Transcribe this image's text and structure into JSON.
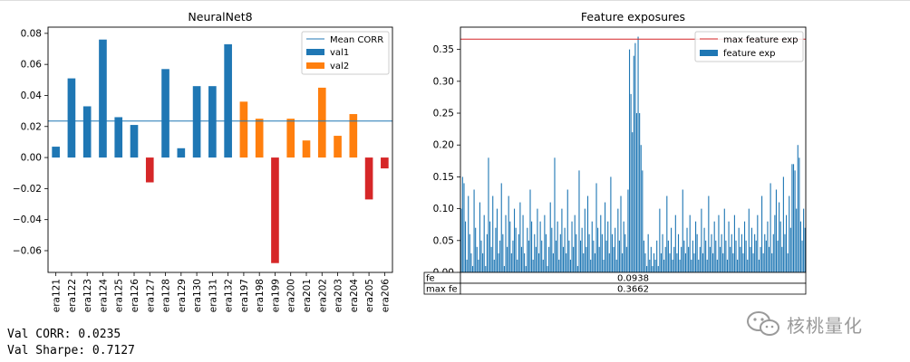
{
  "chart_data": [
    {
      "type": "bar",
      "title": "NeuralNet8",
      "categories": [
        "era121",
        "era122",
        "era123",
        "era124",
        "era125",
        "era126",
        "era127",
        "era128",
        "era129",
        "era130",
        "era131",
        "era132",
        "era197",
        "era198",
        "era199",
        "era200",
        "era201",
        "era202",
        "era203",
        "era204",
        "era205",
        "era206"
      ],
      "values": [
        0.007,
        0.051,
        0.033,
        0.076,
        0.026,
        0.021,
        -0.016,
        0.057,
        0.006,
        0.046,
        0.046,
        0.073,
        0.036,
        0.025,
        -0.068,
        0.025,
        0.011,
        0.045,
        0.014,
        0.028,
        -0.027,
        -0.007
      ],
      "groups": [
        "val1",
        "val1",
        "val1",
        "val1",
        "val1",
        "val1",
        "val1",
        "val1",
        "val1",
        "val1",
        "val1",
        "val1",
        "val2",
        "val2",
        "val2",
        "val2",
        "val2",
        "val2",
        "val2",
        "val2",
        "val2",
        "val2"
      ],
      "ylim": [
        -0.074,
        0.084
      ],
      "yticks": [
        -0.06,
        -0.04,
        -0.02,
        0.0,
        0.02,
        0.04,
        0.06,
        0.08
      ],
      "ytick_labels": [
        "−0.06",
        "−0.04",
        "−0.02",
        "0.00",
        "0.02",
        "0.04",
        "0.06",
        "0.08"
      ],
      "mean_corr": 0.0235,
      "legend": {
        "placement": "top-right",
        "entries": [
          "Mean CORR",
          "val1",
          "val2"
        ]
      },
      "colors": {
        "val1": "#1f77b4",
        "val2": "#ff7f0e",
        "negative": "#d62728",
        "mean": "#1f77b4"
      }
    },
    {
      "type": "bar",
      "title": "Feature exposures",
      "ylim": [
        0,
        0.385
      ],
      "yticks": [
        0.0,
        0.05,
        0.1,
        0.15,
        0.2,
        0.25,
        0.3,
        0.35
      ],
      "ytick_labels": [
        "0.00",
        "0.05",
        "0.10",
        "0.15",
        "0.20",
        "0.25",
        "0.30",
        "0.35"
      ],
      "max_feature_exp": 0.3662,
      "legend": {
        "placement": "top-right",
        "entries": [
          "max feature exp",
          "feature exp"
        ]
      },
      "colors": {
        "bars": "#1f77b4",
        "max_line": "#d62728"
      },
      "values": [
        0.1,
        0.15,
        0.14,
        0.08,
        0.02,
        0.12,
        0.06,
        0.03,
        0.01,
        0.13,
        0.07,
        0.04,
        0.02,
        0.11,
        0.05,
        0.03,
        0.09,
        0.01,
        0.06,
        0.18,
        0.08,
        0.04,
        0.12,
        0.02,
        0.07,
        0.1,
        0.03,
        0.05,
        0.14,
        0.06,
        0.01,
        0.09,
        0.04,
        0.12,
        0.08,
        0.03,
        0.05,
        0.1,
        0.07,
        0.02,
        0.06,
        0.11,
        0.04,
        0.09,
        0.03,
        0.01,
        0.07,
        0.05,
        0.13,
        0.08,
        0.02,
        0.06,
        0.04,
        0.1,
        0.03,
        0.08,
        0.05,
        0.02,
        0.09,
        0.06,
        0.01,
        0.04,
        0.11,
        0.07,
        0.03,
        0.18,
        0.05,
        0.08,
        0.02,
        0.06,
        0.1,
        0.04,
        0.07,
        0.03,
        0.13,
        0.05,
        0.02,
        0.08,
        0.04,
        0.09,
        0.06,
        0.01,
        0.16,
        0.05,
        0.07,
        0.03,
        0.1,
        0.04,
        0.12,
        0.06,
        0.02,
        0.08,
        0.05,
        0.03,
        0.14,
        0.07,
        0.04,
        0.09,
        0.06,
        0.02,
        0.11,
        0.05,
        0.08,
        0.03,
        0.15,
        0.06,
        0.04,
        0.07,
        0.02,
        0.1,
        0.05,
        0.12,
        0.03,
        0.08,
        0.06,
        0.04,
        0.13,
        0.35,
        0.28,
        0.22,
        0.34,
        0.36,
        0.25,
        0.37,
        0.25,
        0.2,
        0.16,
        0.05,
        0.03,
        0.01,
        0.06,
        0.02,
        0.04,
        0.01,
        0.03,
        0.02,
        0.05,
        0.01,
        0.1,
        0.03,
        0.06,
        0.02,
        0.04,
        0.12,
        0.05,
        0.03,
        0.07,
        0.02,
        0.04,
        0.09,
        0.03,
        0.06,
        0.02,
        0.04,
        0.13,
        0.05,
        0.03,
        0.07,
        0.04,
        0.09,
        0.02,
        0.05,
        0.03,
        0.08,
        0.06,
        0.02,
        0.04,
        0.1,
        0.03,
        0.07,
        0.05,
        0.02,
        0.12,
        0.04,
        0.06,
        0.03,
        0.08,
        0.05,
        0.02,
        0.09,
        0.04,
        0.06,
        0.03,
        0.1,
        0.05,
        0.02,
        0.08,
        0.04,
        0.06,
        0.03,
        0.09,
        0.05,
        0.02,
        0.07,
        0.04,
        0.06,
        0.03,
        0.08,
        0.05,
        0.02,
        0.1,
        0.04,
        0.07,
        0.03,
        0.06,
        0.05,
        0.09,
        0.02,
        0.04,
        0.12,
        0.03,
        0.06,
        0.05,
        0.08,
        0.04,
        0.14,
        0.03,
        0.06,
        0.09,
        0.13,
        0.05,
        0.11,
        0.08,
        0.04,
        0.15,
        0.06,
        0.09,
        0.03,
        0.12,
        0.07,
        0.17,
        0.17,
        0.16,
        0.1,
        0.2,
        0.18,
        0.08,
        0.05,
        0.1,
        0.07
      ],
      "table": {
        "rows": [
          {
            "label": "fe",
            "value": "0.0938"
          },
          {
            "label": "max fe",
            "value": "0.3662"
          }
        ]
      }
    }
  ],
  "console": [
    "Val CORR: 0.0235",
    "Val Sharpe: 0.7127"
  ],
  "watermark": {
    "text": "核桃量化",
    "icon": "wechat-icon"
  }
}
